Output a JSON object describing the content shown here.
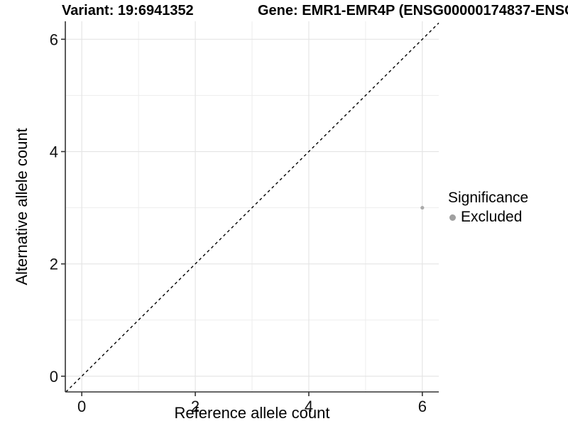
{
  "chart_data": {
    "type": "scatter",
    "titles": [
      "Variant: 19:6941352",
      "Gene: EMR1-EMR4P (ENSG00000174837-ENSG"
    ],
    "xlabel": "Reference allele count",
    "ylabel": "Alternative allele count",
    "xlim": [
      -0.29,
      6.29
    ],
    "ylim": [
      -0.28,
      6.32
    ],
    "x_major_ticks": [
      0,
      2,
      4,
      6
    ],
    "y_major_ticks": [
      0,
      2,
      4,
      6
    ],
    "x_minor_gridlines": [
      1,
      3,
      5
    ],
    "y_minor_gridlines": [
      1,
      3,
      5
    ],
    "grid": "on",
    "reference_line": {
      "type": "abline",
      "slope": 1,
      "intercept": 0,
      "style": "dashed",
      "color": "#000000"
    },
    "series": [
      {
        "name": "Excluded",
        "color": "#aaaaaa",
        "points": [
          {
            "x": 6,
            "y": 3
          }
        ]
      }
    ],
    "legend": {
      "title": "Significance",
      "position": "right",
      "entries": [
        {
          "label": "Excluded",
          "color": "#a0a0a0"
        }
      ]
    },
    "colors": {
      "background": "#ffffff",
      "grid_major": "#e5e5e5",
      "grid_minor": "#ededed",
      "axis_line": "#333333",
      "tick_text": "#111111"
    }
  }
}
